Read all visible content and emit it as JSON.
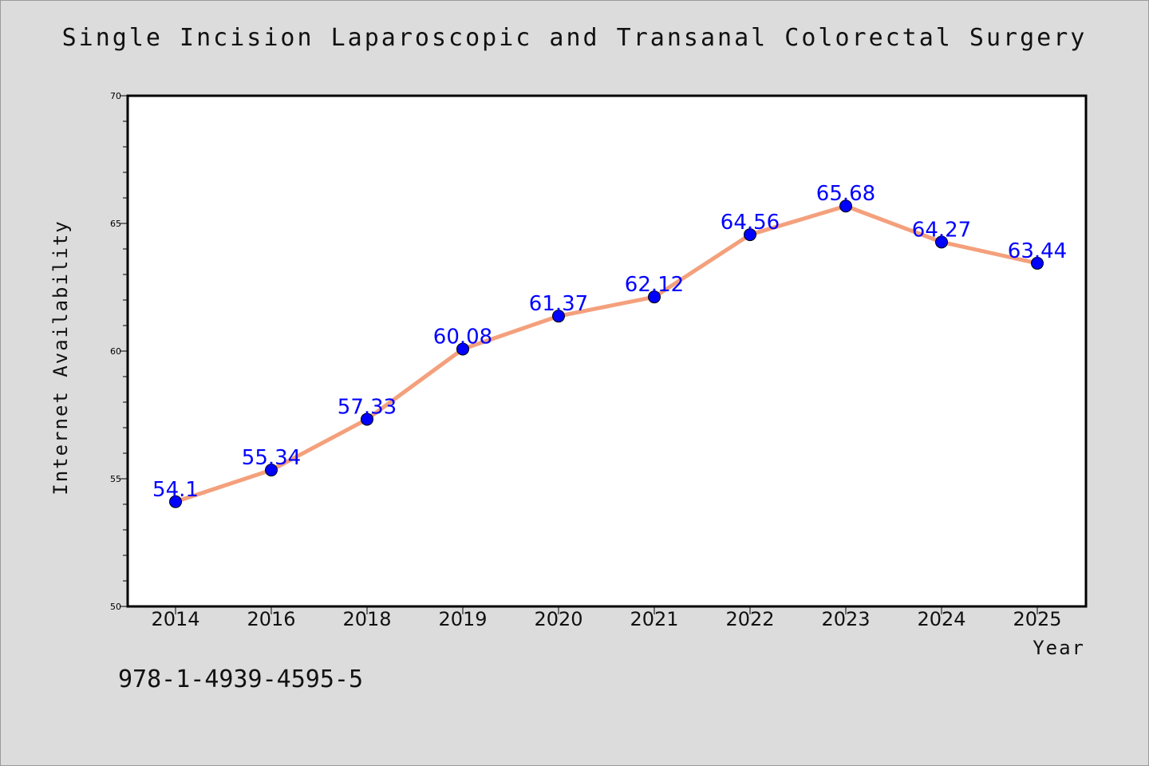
{
  "chart_data": {
    "type": "line",
    "title": "Single Incision Laparoscopic and Transanal Colorectal Surgery",
    "xlabel": "Year",
    "ylabel": "Internet Availability",
    "categories": [
      "2014",
      "2016",
      "2018",
      "2019",
      "2020",
      "2021",
      "2022",
      "2023",
      "2024",
      "2025"
    ],
    "series": [
      {
        "values": [
          54.1,
          55.34,
          57.33,
          60.08,
          61.37,
          62.12,
          64.56,
          65.68,
          64.27,
          63.44
        ]
      }
    ],
    "data_labels": [
      "54.1",
      "55.34",
      "57.33",
      "60.08",
      "61.37",
      "62.12",
      "64.56",
      "65.68",
      "64.27",
      "63.44"
    ],
    "ylim": [
      50,
      70
    ],
    "yticks": [
      "50",
      "55",
      "60",
      "65",
      "70"
    ],
    "grid": false,
    "legend": "none",
    "colors": {
      "line": "#f4a07c",
      "marker": "#0000ff",
      "label": "#0000ff"
    }
  },
  "footer": {
    "isbn": "978-1-4939-4595-5"
  }
}
